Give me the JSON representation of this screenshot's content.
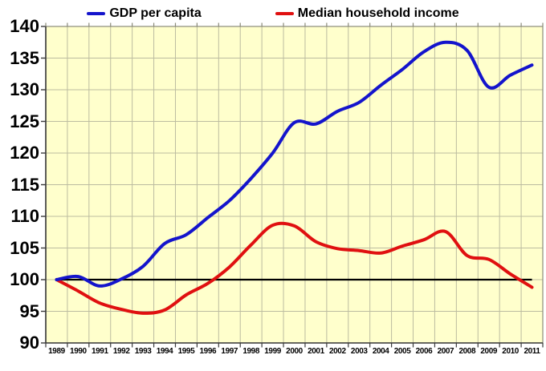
{
  "colors": {
    "gdp_line": "#1414CC",
    "income_line": "#E01010",
    "reference_line": "#000000",
    "plot_background": "#FFFFCC",
    "grid_line": "#BCBCA0",
    "axis_line": "#3A3A3A",
    "border_line": "#8A8A78"
  },
  "chart_data": {
    "type": "line",
    "title": "",
    "xlabel": "",
    "ylabel": "",
    "legend_position": "top",
    "grid": true,
    "ylim": [
      90,
      140
    ],
    "y_ticks": [
      90,
      95,
      100,
      105,
      110,
      115,
      120,
      125,
      130,
      135,
      140
    ],
    "y_tick_labels": [
      "90",
      "95",
      "100",
      "105",
      "110",
      "115",
      "120",
      "125",
      "130",
      "135",
      "140"
    ],
    "x": [
      1989,
      1990,
      1991,
      1992,
      1993,
      1994,
      1995,
      1996,
      1997,
      1998,
      1999,
      2000,
      2001,
      2002,
      2003,
      2004,
      2005,
      2006,
      2007,
      2008,
      2009,
      2010,
      2011
    ],
    "x_tick_labels": [
      "1989",
      "1990",
      "1991",
      "1992",
      "1993",
      "1994",
      "1995",
      "1996",
      "1997",
      "1998",
      "1999",
      "2000",
      "2001",
      "2002",
      "2003",
      "2004",
      "2005",
      "2006",
      "2007",
      "2008",
      "2009",
      "2010",
      "2011"
    ],
    "reference_line": {
      "value": 100
    },
    "series": [
      {
        "name": "GDP per capita",
        "values": [
          100,
          100.5,
          99.0,
          100.1,
          102.1,
          105.7,
          107.1,
          109.8,
          112.5,
          116.0,
          120.0,
          124.8,
          124.6,
          126.6,
          128.0,
          130.7,
          133.2,
          136.0,
          137.5,
          136.2,
          130.4,
          132.3,
          133.9
        ]
      },
      {
        "name": "Median household income",
        "values": [
          100,
          98.2,
          96.3,
          95.3,
          94.7,
          95.2,
          97.6,
          99.4,
          102.0,
          105.5,
          108.6,
          108.5,
          106.0,
          104.9,
          104.6,
          104.2,
          105.3,
          106.3,
          107.6,
          103.8,
          103.2,
          100.9,
          98.8
        ]
      }
    ]
  }
}
